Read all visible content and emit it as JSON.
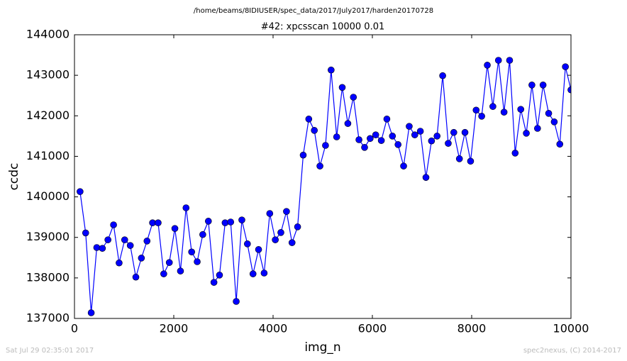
{
  "chart_data": {
    "type": "line",
    "suptitle": "/home/beams/8IDIUSER/spec_data/2017/July2017/harden20170728",
    "title": "#42: xpcsscan 10000 0.01",
    "xlabel": "img_n",
    "ylabel": "ccdc",
    "footer_left": "Sat Jul 29 02:35:01 2017",
    "footer_right": "spec2nexus, (C) 2014-2017",
    "x": [
      112,
      225,
      337,
      449,
      562,
      674,
      787,
      899,
      1011,
      1124,
      1236,
      1348,
      1461,
      1573,
      1685,
      1798,
      1910,
      2022,
      2135,
      2247,
      2360,
      2472,
      2584,
      2697,
      2809,
      2921,
      3034,
      3146,
      3258,
      3371,
      3483,
      3596,
      3708,
      3820,
      3933,
      4045,
      4157,
      4270,
      4382,
      4494,
      4607,
      4719,
      4831,
      4944,
      5056,
      5169,
      5281,
      5393,
      5506,
      5618,
      5730,
      5843,
      5955,
      6067,
      6180,
      6292,
      6404,
      6517,
      6629,
      6742,
      6854,
      6966,
      7079,
      7191,
      7303,
      7416,
      7528,
      7640,
      7753,
      7865,
      7978,
      8090,
      8202,
      8315,
      8427,
      8539,
      8652,
      8764,
      8876,
      8989,
      9101,
      9213,
      9326,
      9438,
      9551,
      9663,
      9775,
      9888,
      10000
    ],
    "series": [
      {
        "name": "ccdc",
        "color": "#0000ff",
        "values": [
          140130,
          139110,
          137140,
          138750,
          138730,
          138940,
          139310,
          138370,
          138940,
          138800,
          138020,
          138490,
          138910,
          139360,
          139360,
          138100,
          138380,
          139220,
          138170,
          139730,
          138640,
          138400,
          139070,
          139400,
          137890,
          138070,
          139360,
          139380,
          137420,
          139430,
          138840,
          138100,
          138700,
          138120,
          139590,
          138940,
          139120,
          139640,
          138870,
          139260,
          141030,
          141920,
          141640,
          140760,
          141270,
          143130,
          141480,
          142700,
          141810,
          142460,
          141410,
          141220,
          141440,
          141530,
          141390,
          141920,
          141500,
          141290,
          140760,
          141740,
          141530,
          141620,
          140480,
          141380,
          141500,
          142990,
          141320,
          141590,
          140940,
          141590,
          140880,
          142140,
          141990,
          143250,
          142230,
          143370,
          142090,
          143370,
          141080,
          142160,
          141570,
          142760,
          141690,
          142760,
          142060,
          141850,
          141300,
          143210,
          142640
        ]
      }
    ],
    "xlim": [
      0,
      10000
    ],
    "xticks": [
      0,
      2000,
      4000,
      6000,
      8000,
      10000
    ],
    "ylim": [
      137000,
      144000
    ],
    "yticks": [
      137000,
      138000,
      139000,
      140000,
      141000,
      142000,
      143000,
      144000
    ]
  }
}
